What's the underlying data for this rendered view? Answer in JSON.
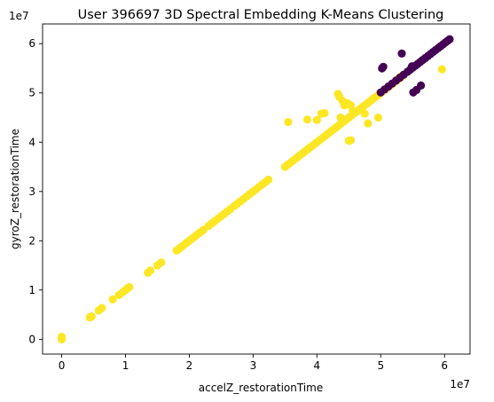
{
  "colors": {
    "cluster_0": "#440154",
    "cluster_1": "#fde725",
    "axes": "#000000",
    "background": "#ffffff"
  },
  "chart_data": {
    "type": "scatter",
    "title": "User 396697 3D Spectral Embedding K-Means Clustering",
    "xlabel": "accelZ_restorationTime",
    "ylabel": "gyroZ_restorationTime",
    "x_offset_text": "1e7",
    "y_offset_text": "1e7",
    "xlim": [
      -0.3,
      6.4
    ],
    "ylim": [
      -0.3,
      6.4
    ],
    "x_ticks": [
      0,
      1,
      2,
      3,
      4,
      5,
      6
    ],
    "y_ticks": [
      0,
      1,
      2,
      3,
      4,
      5,
      6
    ],
    "x_tick_labels": [
      "0",
      "1",
      "2",
      "3",
      "4",
      "5",
      "6"
    ],
    "y_tick_labels": [
      "0",
      "1",
      "2",
      "3",
      "4",
      "5",
      "6"
    ],
    "grid": false,
    "legend": false,
    "series": [
      {
        "color": "#fde725",
        "points": [
          [
            0.0,
            0.0
          ],
          [
            0.02,
            0.02
          ],
          [
            0.0,
            0.52
          ],
          [
            4.4,
            4.45
          ],
          [
            4.55,
            4.5
          ],
          [
            4.7,
            4.65
          ],
          [
            5.8,
            5.85
          ],
          [
            6.3,
            6.35
          ],
          [
            8.0,
            8.1
          ],
          [
            9.0,
            9.0
          ],
          [
            9.6,
            9.6
          ],
          [
            10.0,
            10.0
          ],
          [
            10.3,
            10.35
          ],
          [
            10.6,
            10.6
          ],
          [
            13.5,
            13.5
          ],
          [
            13.9,
            13.95
          ],
          [
            15.0,
            15.0
          ],
          [
            15.6,
            15.6
          ],
          [
            18.0,
            18.0
          ],
          [
            18.3,
            18.3
          ],
          [
            18.7,
            18.7
          ],
          [
            19.0,
            19.0
          ],
          [
            19.4,
            19.4
          ],
          [
            19.8,
            19.8
          ],
          [
            20.2,
            20.2
          ],
          [
            20.6,
            20.6
          ],
          [
            21.0,
            21.0
          ],
          [
            21.4,
            21.4
          ],
          [
            21.8,
            21.8
          ],
          [
            22.2,
            22.2
          ],
          [
            23.0,
            23.0
          ],
          [
            23.5,
            23.5
          ],
          [
            24.0,
            24.0
          ],
          [
            24.5,
            24.5
          ],
          [
            25.0,
            25.0
          ],
          [
            25.4,
            25.4
          ],
          [
            25.9,
            25.9
          ],
          [
            26.4,
            26.4
          ],
          [
            27.0,
            27.0
          ],
          [
            27.5,
            27.5
          ],
          [
            28.0,
            28.0
          ],
          [
            28.5,
            28.5
          ],
          [
            29.0,
            29.0
          ],
          [
            29.4,
            29.4
          ],
          [
            29.9,
            29.9
          ],
          [
            30.4,
            30.4
          ],
          [
            30.9,
            30.9
          ],
          [
            31.4,
            31.4
          ],
          [
            31.9,
            31.9
          ],
          [
            32.4,
            32.4
          ],
          [
            35.0,
            35.0
          ],
          [
            35.4,
            35.4
          ],
          [
            35.8,
            35.8
          ],
          [
            36.2,
            36.2
          ],
          [
            36.6,
            36.6
          ],
          [
            37.0,
            37.0
          ],
          [
            37.4,
            37.4
          ],
          [
            37.8,
            37.8
          ],
          [
            38.2,
            38.2
          ],
          [
            38.6,
            38.6
          ],
          [
            39.0,
            39.0
          ],
          [
            39.4,
            39.4
          ],
          [
            39.8,
            39.8
          ],
          [
            40.2,
            40.2
          ],
          [
            40.6,
            40.6
          ],
          [
            41.0,
            41.0
          ],
          [
            41.4,
            41.4
          ],
          [
            41.8,
            41.8
          ],
          [
            42.2,
            42.2
          ],
          [
            42.6,
            42.6
          ],
          [
            43.0,
            43.0
          ],
          [
            43.4,
            43.4
          ],
          [
            43.8,
            43.8
          ],
          [
            44.2,
            44.2
          ],
          [
            44.6,
            44.6
          ],
          [
            45.0,
            45.0
          ],
          [
            45.4,
            45.4
          ],
          [
            45.8,
            45.8
          ],
          [
            46.2,
            46.2
          ],
          [
            46.6,
            46.6
          ],
          [
            47.0,
            47.0
          ],
          [
            47.4,
            47.4
          ],
          [
            47.8,
            47.8
          ],
          [
            48.2,
            48.2
          ],
          [
            48.6,
            48.6
          ],
          [
            49.0,
            49.0
          ],
          [
            49.4,
            49.4
          ],
          [
            49.8,
            49.8
          ],
          [
            50.2,
            50.2
          ],
          [
            50.6,
            50.6
          ],
          [
            51.0,
            51.0
          ],
          [
            51.4,
            51.4
          ],
          [
            51.8,
            51.8
          ],
          [
            52.2,
            52.2
          ],
          [
            52.6,
            52.6
          ],
          [
            53.0,
            53.0
          ],
          [
            53.4,
            53.4
          ],
          [
            35.5,
            44.1
          ],
          [
            38.5,
            44.6
          ],
          [
            40.0,
            44.5
          ],
          [
            40.7,
            45.8
          ],
          [
            41.2,
            45.9
          ],
          [
            43.3,
            49.8
          ],
          [
            43.5,
            49.2
          ],
          [
            44.0,
            48.4
          ],
          [
            44.3,
            47.5
          ],
          [
            44.8,
            47.9
          ],
          [
            45.3,
            47.5
          ],
          [
            45.6,
            46.3
          ],
          [
            45.0,
            40.3
          ],
          [
            45.3,
            40.4
          ],
          [
            47.5,
            45.8
          ],
          [
            48.0,
            43.8
          ],
          [
            49.6,
            45.0
          ],
          [
            43.7,
            45.0
          ],
          [
            52.6,
            52.8
          ],
          [
            53.2,
            53.4
          ],
          [
            54.8,
            55.2
          ],
          [
            59.6,
            54.8
          ]
        ]
      },
      {
        "color": "#440154",
        "points": [
          [
            50.2,
            55.0
          ],
          [
            50.4,
            55.3
          ],
          [
            53.3,
            58.0
          ],
          [
            56.3,
            51.5
          ],
          [
            55.1,
            50.1
          ],
          [
            55.6,
            50.6
          ],
          [
            54.9,
            55.4
          ],
          [
            50.0,
            50.1
          ],
          [
            50.6,
            50.7
          ],
          [
            51.2,
            51.3
          ],
          [
            51.8,
            51.9
          ],
          [
            52.4,
            52.5
          ],
          [
            53.0,
            53.1
          ],
          [
            53.6,
            53.7
          ],
          [
            54.2,
            54.3
          ],
          [
            54.6,
            54.7
          ],
          [
            55.0,
            55.1
          ],
          [
            55.4,
            55.5
          ],
          [
            55.8,
            55.9
          ],
          [
            56.2,
            56.3
          ],
          [
            56.6,
            56.7
          ],
          [
            57.0,
            57.1
          ],
          [
            57.4,
            57.5
          ],
          [
            57.8,
            57.9
          ],
          [
            58.2,
            58.3
          ],
          [
            58.6,
            58.7
          ],
          [
            59.0,
            59.1
          ],
          [
            59.4,
            59.5
          ],
          [
            59.8,
            59.9
          ],
          [
            60.2,
            60.3
          ],
          [
            60.5,
            60.6
          ],
          [
            60.8,
            60.9
          ]
        ]
      }
    ]
  }
}
